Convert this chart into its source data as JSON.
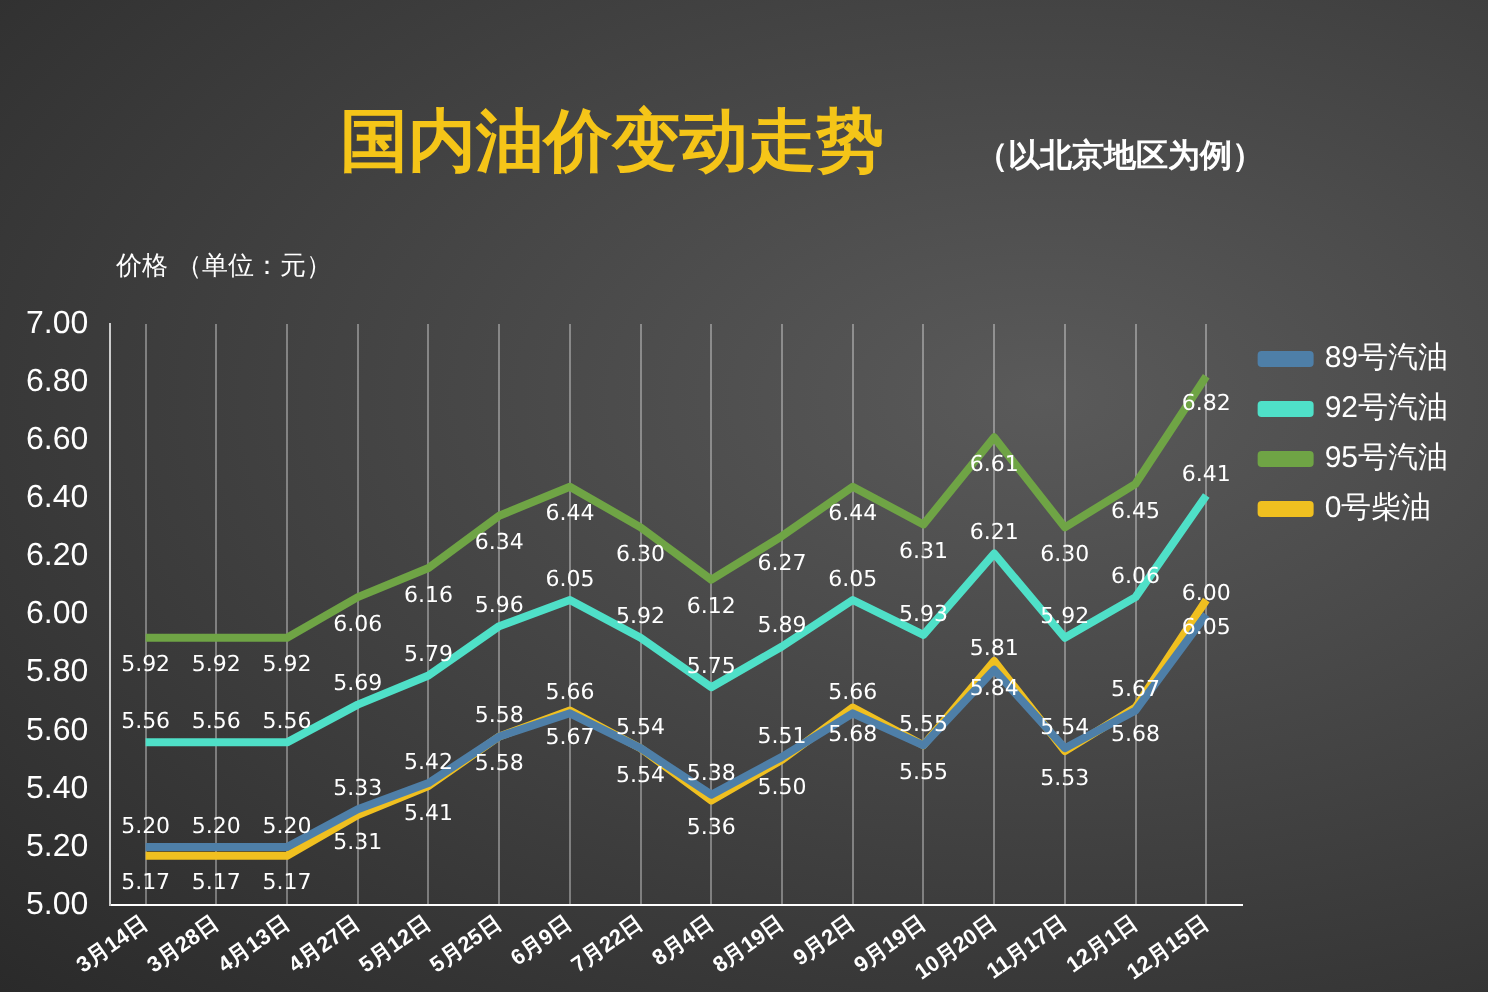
{
  "chart_data": {
    "type": "line",
    "title": "国内油价变动走势",
    "subtitle": "（以北京地区为例）",
    "ylabel": "价格 （单位：元）",
    "categories": [
      "3月14日",
      "3月28日",
      "4月13日",
      "4月27日",
      "5月12日",
      "5月25日",
      "6月9日",
      "7月22日",
      "8月4日",
      "8月19日",
      "9月2日",
      "9月19日",
      "10月20日",
      "11月17日",
      "12月1日",
      "12月15日"
    ],
    "series": [
      {
        "name": "89号汽油",
        "color": "#4e7fa8",
        "values": [
          5.2,
          5.2,
          5.2,
          5.33,
          5.42,
          5.58,
          5.66,
          5.54,
          5.38,
          5.51,
          5.66,
          5.55,
          5.81,
          5.54,
          5.67,
          6.0
        ],
        "value_labels": [
          "5.20",
          "5.20",
          "5.20",
          "5.33",
          "5.42",
          "5.58",
          "5.66",
          "5.54",
          "5.38",
          "5.51",
          "5.66",
          "5.55",
          "5.81",
          "5.54",
          "5.67",
          "6.00"
        ]
      },
      {
        "name": "92号汽油",
        "color": "#4fe0c8",
        "values": [
          5.56,
          5.56,
          5.56,
          5.69,
          5.79,
          5.96,
          6.05,
          5.92,
          5.75,
          5.89,
          6.05,
          5.93,
          6.21,
          5.92,
          6.06,
          6.41
        ],
        "value_labels": [
          "5.56",
          "5.56",
          "5.56",
          "5.69",
          "5.79",
          "5.96",
          "6.05",
          "5.92",
          "5.75",
          "5.89",
          "6.05",
          "5.93",
          "6.21",
          "5.92",
          "6.06",
          "6.41"
        ]
      },
      {
        "name": "95号汽油",
        "color": "#6fa445",
        "values": [
          5.92,
          5.92,
          5.92,
          6.06,
          6.16,
          6.34,
          6.44,
          6.3,
          6.12,
          6.27,
          6.44,
          6.31,
          6.61,
          6.3,
          6.45,
          6.82
        ],
        "value_labels": [
          "5.92",
          "5.92",
          "5.92",
          "6.06",
          "6.16",
          "6.34",
          "6.44",
          "6.30",
          "6.12",
          "6.27",
          "6.44",
          "6.31",
          "6.61",
          "6.30",
          "6.45",
          "6.82"
        ]
      },
      {
        "name": "0号柴油",
        "color": "#f0c020",
        "values": [
          5.17,
          5.17,
          5.17,
          5.31,
          5.41,
          5.58,
          5.67,
          5.54,
          5.36,
          5.5,
          5.68,
          5.55,
          5.84,
          5.53,
          5.68,
          6.05
        ],
        "value_labels": [
          "5.17",
          "5.17",
          "5.17",
          "5.31",
          "5.41",
          "5.58",
          "5.67",
          "5.54",
          "5.36",
          "5.50",
          "5.68",
          "5.55",
          "5.84",
          "5.53",
          "5.68",
          "6.05"
        ]
      }
    ],
    "ylim": [
      5.0,
      7.0
    ],
    "yticks": [
      {
        "value": 5.0,
        "label": "5.00"
      },
      {
        "value": 5.2,
        "label": "5.20"
      },
      {
        "value": 5.4,
        "label": "5.40"
      },
      {
        "value": 5.6,
        "label": "5.60"
      },
      {
        "value": 5.8,
        "label": "5.80"
      },
      {
        "value": 6.0,
        "label": "6.00"
      },
      {
        "value": 6.2,
        "label": "6.20"
      },
      {
        "value": 6.4,
        "label": "6.40"
      },
      {
        "value": 6.6,
        "label": "6.60"
      },
      {
        "value": 6.8,
        "label": "6.80"
      },
      {
        "value": 7.0,
        "label": "7.00"
      }
    ],
    "grid": "x",
    "legend": "right",
    "marker": "none",
    "line_style": "solid"
  }
}
